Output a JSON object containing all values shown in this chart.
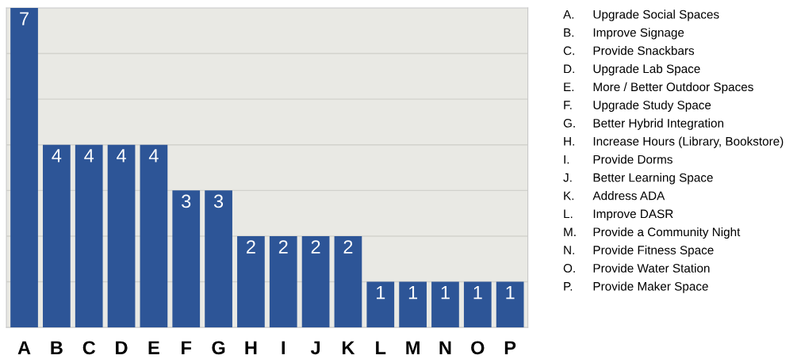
{
  "chart_data": {
    "type": "bar",
    "categories": [
      "A",
      "B",
      "C",
      "D",
      "E",
      "F",
      "G",
      "H",
      "I",
      "J",
      "K",
      "L",
      "M",
      "N",
      "O",
      "P"
    ],
    "values": [
      7,
      4,
      4,
      4,
      4,
      3,
      3,
      2,
      2,
      2,
      2,
      1,
      1,
      1,
      1,
      1
    ],
    "color": "#2d5597",
    "data_labels": true,
    "grid": "y",
    "ylim": [
      0,
      7
    ],
    "yticks": [
      {
        "value": 1,
        "label": null
      },
      {
        "value": 2,
        "label": null
      },
      {
        "value": 3,
        "label": null
      },
      {
        "value": 4,
        "label": null
      },
      {
        "value": 5,
        "label": null
      },
      {
        "value": 6,
        "label": null
      }
    ],
    "tick_labels": "x",
    "annotations": [
      "A. Upgrade Social Spaces",
      "B. Improve Signage",
      "C. Provide Snackbars",
      "D. Upgrade Lab Space",
      "E. More / Better Outdoor Spaces",
      "F. Upgrade Study Space",
      "G. Better Hybrid Integration",
      "H. Increase Hours (Library, Bookstore)",
      "I. Provide Dorms",
      "J. Better Learning Space",
      "K. Address ADA",
      "L. Improve DASR",
      "M. Provide a Community Night",
      "N. Provide Fitness Space",
      "O. Provide Water Station",
      "P. Provide Maker Space"
    ]
  }
}
